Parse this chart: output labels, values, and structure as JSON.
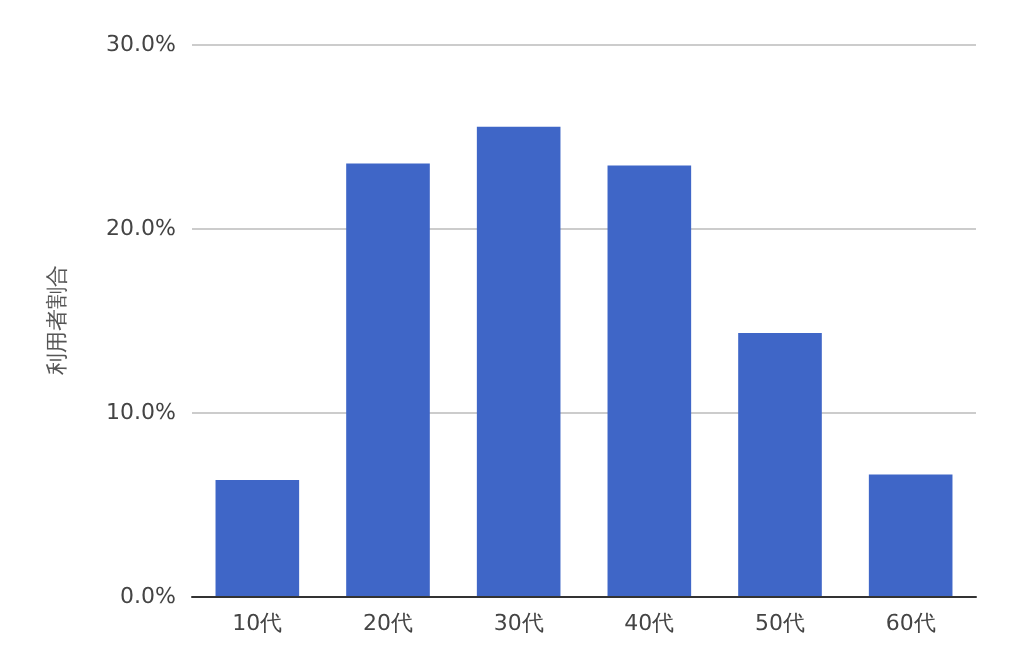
{
  "chart_data": {
    "type": "bar",
    "ylabel": "利用者割合",
    "categories": [
      "10代",
      "20代",
      "30代",
      "40代",
      "50代",
      "60代"
    ],
    "values": [
      6.3,
      23.5,
      25.5,
      23.4,
      14.3,
      6.6
    ],
    "color": "#3f66c7",
    "ylim": [
      0,
      30
    ],
    "yticks": [
      {
        "value": 0,
        "label": "0.0%"
      },
      {
        "value": 10,
        "label": "10.0%"
      },
      {
        "value": 20,
        "label": "20.0%"
      },
      {
        "value": 30,
        "label": "30.0%"
      }
    ],
    "grid": "y"
  }
}
